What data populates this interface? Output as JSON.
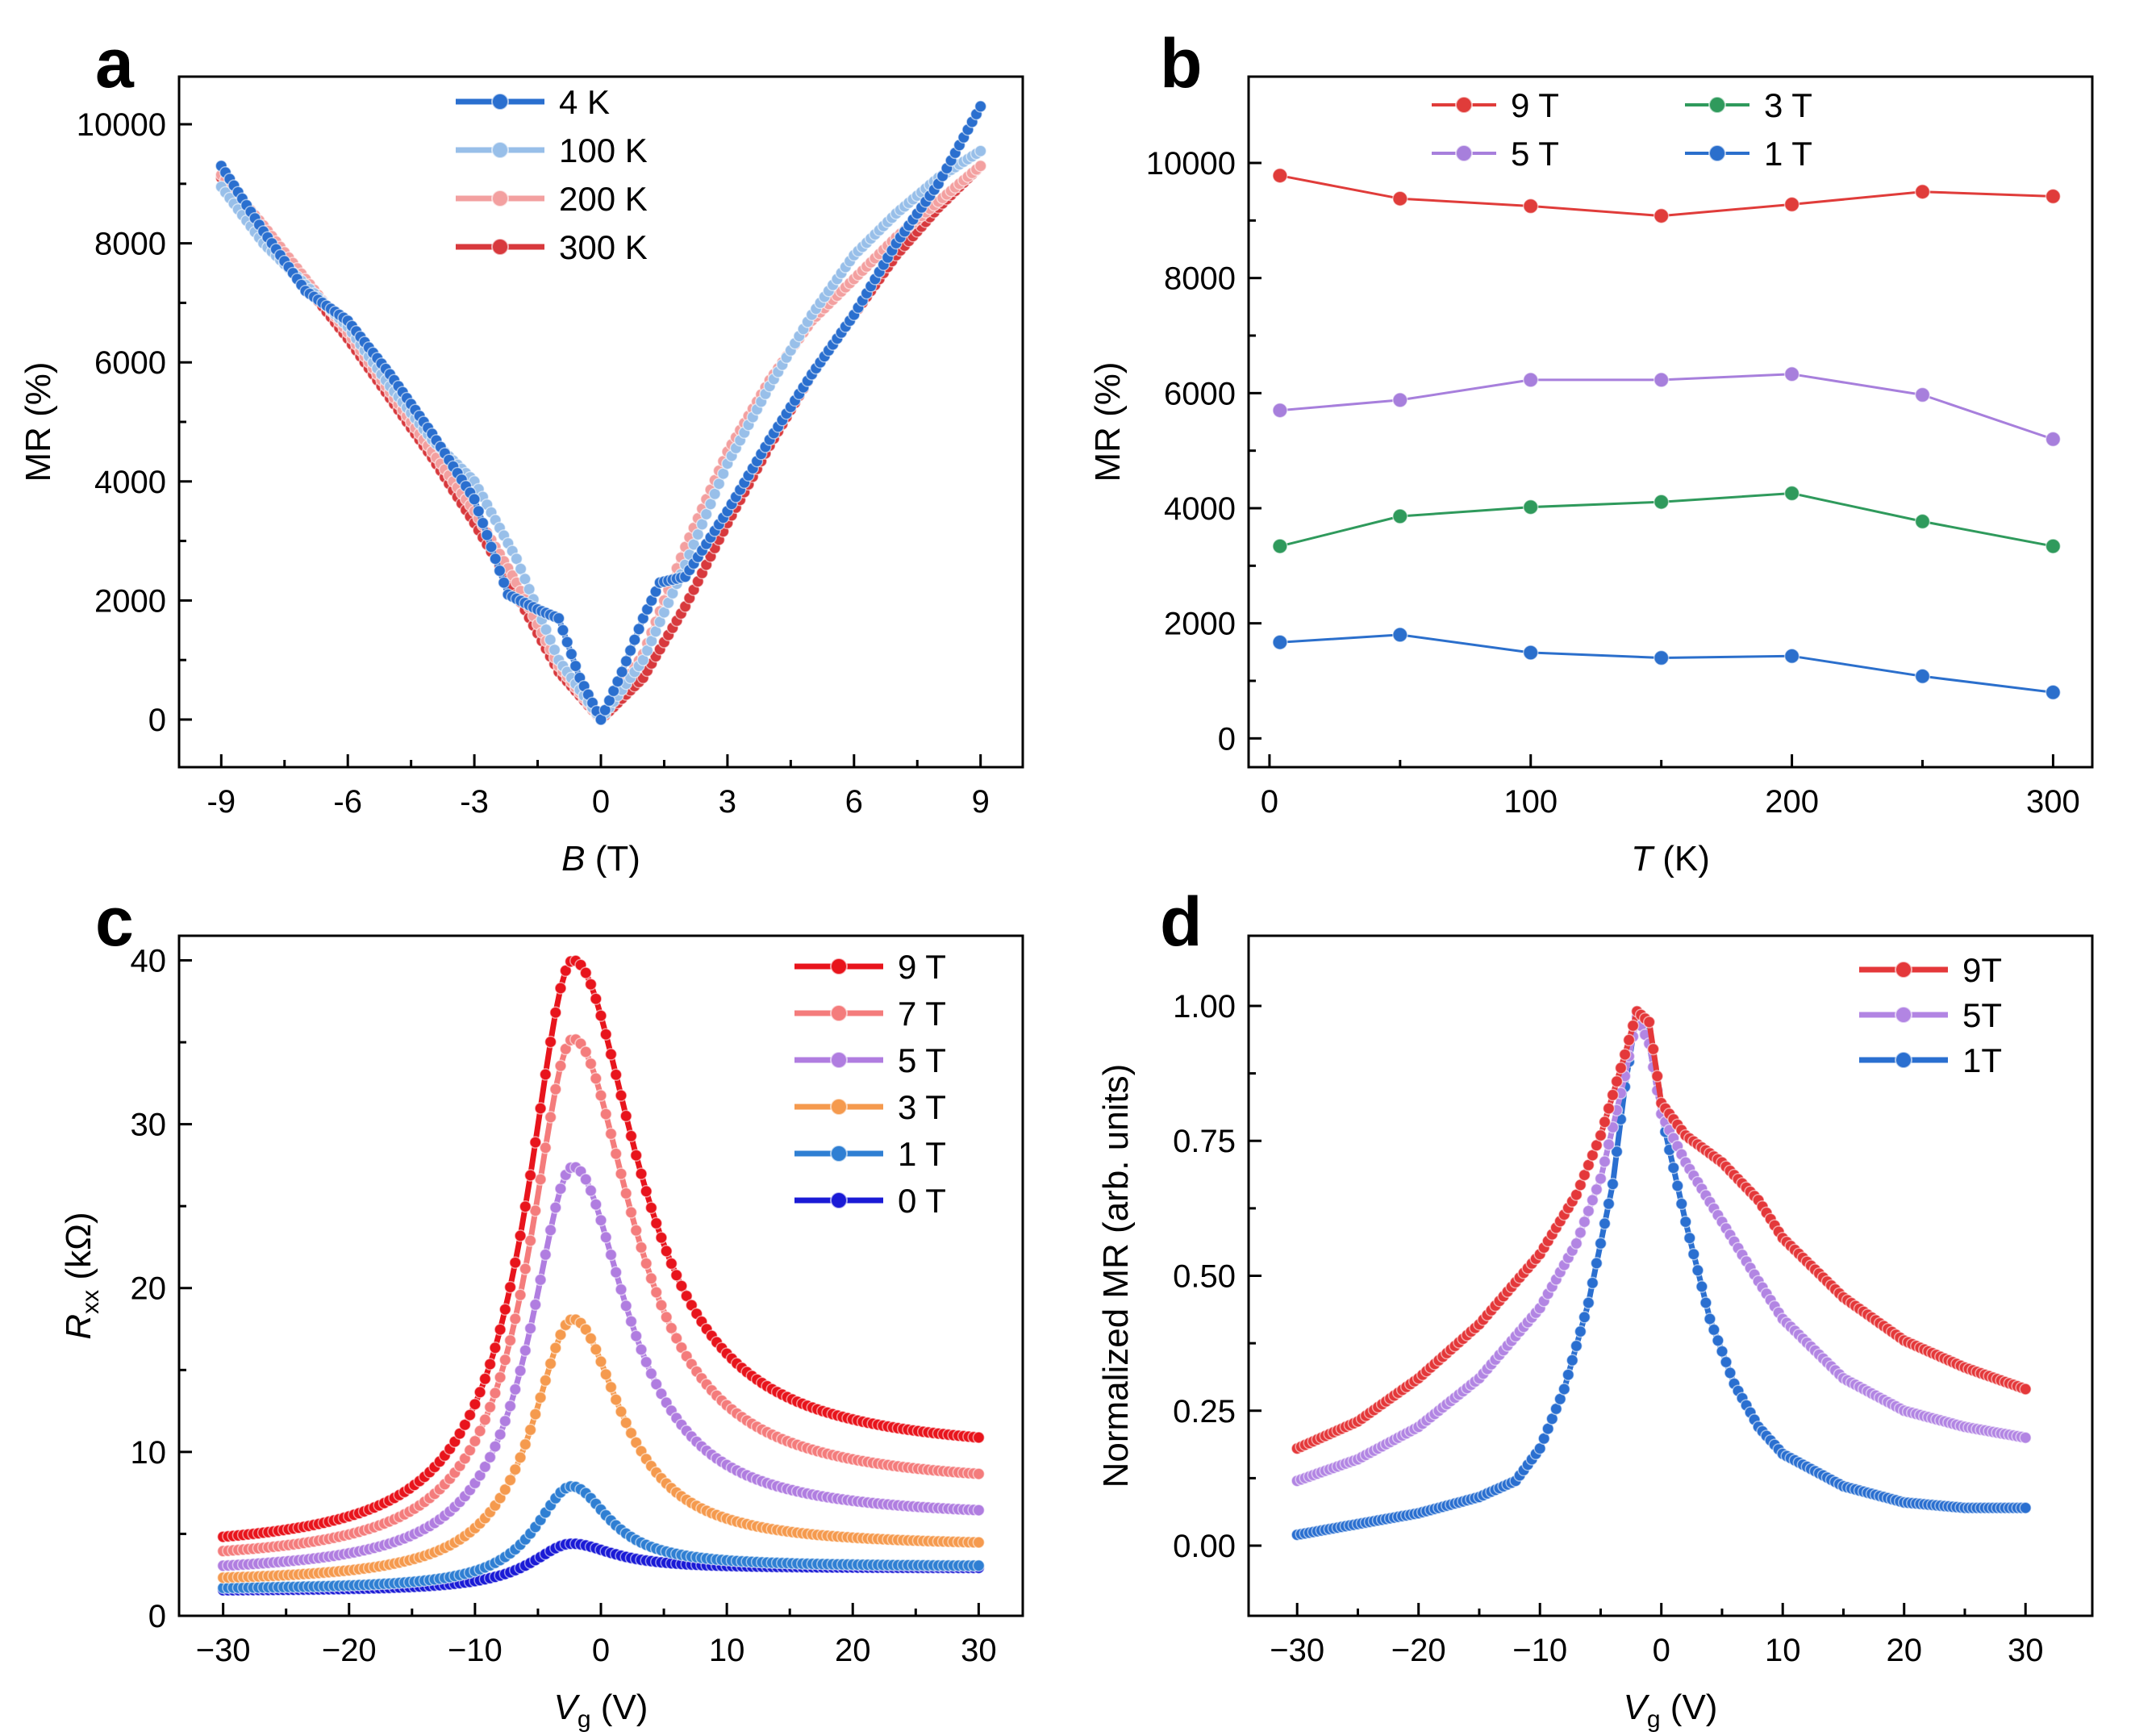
{
  "figure": {
    "panel_letters": [
      "a",
      "b",
      "c",
      "d"
    ]
  },
  "chart_data": [
    {
      "panel": "a",
      "type": "line",
      "xlabel": "B",
      "xlabel_unit": " (T)",
      "ylabel": "MR (%)",
      "xlim": [
        -10,
        10
      ],
      "ylim": [
        -800,
        10800
      ],
      "x_ticks": [
        -9,
        -6,
        -3,
        0,
        3,
        6,
        9
      ],
      "y_ticks": [
        0,
        2000,
        4000,
        6000,
        8000,
        10000
      ],
      "legend_position": "top-center",
      "series": [
        {
          "name": "4 K",
          "color": "#2a6fcf",
          "x": [
            -9,
            -8,
            -7,
            -6,
            -5,
            -4,
            -3,
            -2.2,
            -1.5,
            -1,
            -0.5,
            0,
            0.5,
            1,
            1.4,
            2,
            3,
            4,
            5,
            6,
            7,
            8,
            9
          ],
          "y": [
            9300,
            8200,
            7200,
            6700,
            5800,
            4800,
            3700,
            2100,
            1850,
            1700,
            700,
            0,
            800,
            1700,
            2300,
            2400,
            3500,
            4700,
            5800,
            6800,
            8000,
            9000,
            10300
          ]
        },
        {
          "name": "100 K",
          "color": "#98bfe9",
          "x": [
            -9,
            -8,
            -7,
            -6,
            -5,
            -4,
            -3,
            -2,
            -1,
            0,
            1,
            2,
            3,
            4,
            5,
            6,
            7,
            8,
            9
          ],
          "y": [
            8950,
            8000,
            7300,
            6600,
            5600,
            4700,
            4000,
            2700,
            1000,
            0,
            1000,
            2600,
            4300,
            5600,
            6800,
            7800,
            8500,
            9100,
            9550
          ]
        },
        {
          "name": "200 K",
          "color": "#f3a0a0",
          "x": [
            -9,
            -8,
            -7,
            -6,
            -5,
            -4,
            -3,
            -2,
            -1,
            0,
            1,
            2,
            3,
            4,
            5,
            6,
            7,
            8,
            9
          ],
          "y": [
            9150,
            8300,
            7400,
            6500,
            5500,
            4500,
            3500,
            2300,
            900,
            0,
            1100,
            2900,
            4500,
            5700,
            6700,
            7400,
            8100,
            8700,
            9300
          ]
        },
        {
          "name": "300 K",
          "color": "#d8393d",
          "x": [
            -9,
            -8,
            -7,
            -6,
            -5,
            -4,
            -3,
            -2,
            -1,
            0,
            1,
            2,
            3,
            4,
            5,
            6,
            7,
            8,
            9
          ],
          "y": [
            9100,
            8200,
            7300,
            6400,
            5400,
            4400,
            3300,
            2100,
            800,
            0,
            700,
            1900,
            3300,
            4600,
            5800,
            6800,
            7800,
            8600,
            9300
          ]
        }
      ]
    },
    {
      "panel": "b",
      "type": "line",
      "xlabel": "T",
      "xlabel_unit": " (K)",
      "ylabel": "MR (%)",
      "xlim": [
        -8,
        315
      ],
      "ylim": [
        -500,
        11500
      ],
      "x_ticks": [
        0,
        100,
        200,
        300
      ],
      "y_ticks": [
        0,
        2000,
        4000,
        6000,
        8000,
        10000
      ],
      "legend_position": "top",
      "series": [
        {
          "name": "9 T",
          "color": "#e03c3a",
          "x": [
            4,
            50,
            100,
            150,
            200,
            250,
            300
          ],
          "y": [
            9780,
            9380,
            9250,
            9080,
            9280,
            9500,
            9420
          ]
        },
        {
          "name": "5 T",
          "color": "#a77fdc",
          "x": [
            4,
            50,
            100,
            150,
            200,
            250,
            300
          ],
          "y": [
            5700,
            5880,
            6230,
            6230,
            6330,
            5970,
            5200
          ]
        },
        {
          "name": "3 T",
          "color": "#2f9a5c",
          "x": [
            4,
            50,
            100,
            150,
            200,
            250,
            300
          ],
          "y": [
            3340,
            3860,
            4020,
            4110,
            4260,
            3770,
            3340
          ]
        },
        {
          "name": "1 T",
          "color": "#2b6fcc",
          "x": [
            4,
            50,
            100,
            150,
            200,
            250,
            300
          ],
          "y": [
            1670,
            1800,
            1490,
            1400,
            1430,
            1080,
            800
          ]
        }
      ]
    },
    {
      "panel": "c",
      "type": "line",
      "xlabel": "V",
      "xlabel_sub": "g",
      "xlabel_unit": " (V)",
      "ylabel": "R",
      "ylabel_sub": "xx",
      "ylabel_unit": " (kΩ)",
      "xlim": [
        -33.5,
        33.5
      ],
      "ylim": [
        0,
        41.5
      ],
      "x_ticks": [
        -30,
        -20,
        -10,
        0,
        10,
        20,
        30
      ],
      "y_ticks": [
        0,
        10,
        20,
        30,
        40
      ],
      "legend_position": "top-right",
      "series": [
        {
          "name": "9 T",
          "color": "#e8141c",
          "peak": 40.0,
          "floor_left": 3.9,
          "floor_right": 9.8,
          "x0": -2.2,
          "gamma_left": 4.5,
          "gamma_right": 6.2
        },
        {
          "name": "7 T",
          "color": "#f47c7c",
          "peak": 35.2,
          "floor_left": 3.2,
          "floor_right": 7.8,
          "x0": -2.2,
          "gamma_left": 4.3,
          "gamma_right": 5.8
        },
        {
          "name": "5 T",
          "color": "#b07de0",
          "peak": 27.4,
          "floor_left": 2.5,
          "floor_right": 5.9,
          "x0": -2.2,
          "gamma_left": 4.2,
          "gamma_right": 5.2
        },
        {
          "name": "3 T",
          "color": "#f59a4e",
          "peak": 18.1,
          "floor_left": 2.0,
          "floor_right": 4.2,
          "x0": -2.2,
          "gamma_left": 4.0,
          "gamma_right": 4.6
        },
        {
          "name": "1 T",
          "color": "#2f7fd3",
          "peak": 7.9,
          "floor_left": 1.6,
          "floor_right": 3.0,
          "x0": -2.3,
          "gamma_left": 3.6,
          "gamma_right": 3.6
        },
        {
          "name": "0 T",
          "color": "#1a1ad6",
          "peak": 4.4,
          "floor_left": 1.5,
          "floor_right": 2.9,
          "x0": -2.3,
          "gamma_left": 4.0,
          "gamma_right": 4.0
        }
      ]
    },
    {
      "panel": "d",
      "type": "line",
      "xlabel": "V",
      "xlabel_sub": "g",
      "xlabel_unit": " (V)",
      "ylabel": "Normalized MR (arb. units)",
      "xlim": [
        -34,
        35.5
      ],
      "ylim": [
        -0.13,
        1.13
      ],
      "x_ticks": [
        -30,
        -20,
        -10,
        0,
        10,
        20,
        30
      ],
      "y_ticks": [
        0.0,
        0.25,
        0.5,
        0.75,
        1.0
      ],
      "y_tick_labels": [
        "0.00",
        "0.25",
        "0.50",
        "0.75",
        "1.00"
      ],
      "legend_position": "top-right",
      "series": [
        {
          "name": "9T",
          "color": "#e4383a",
          "x": [
            -30,
            -25,
            -20,
            -15,
            -10,
            -7,
            -5,
            -3,
            -2,
            -1,
            0,
            2,
            5,
            8,
            10,
            15,
            20,
            25,
            30
          ],
          "y": [
            0.18,
            0.23,
            0.31,
            0.41,
            0.54,
            0.65,
            0.76,
            0.91,
            0.99,
            0.97,
            0.82,
            0.76,
            0.71,
            0.64,
            0.57,
            0.46,
            0.38,
            0.33,
            0.29
          ]
        },
        {
          "name": "5T",
          "color": "#b285e3",
          "x": [
            -30,
            -25,
            -20,
            -15,
            -10,
            -7,
            -5,
            -3,
            -2,
            -1,
            0,
            2,
            5,
            8,
            10,
            15,
            20,
            25,
            30
          ],
          "y": [
            0.12,
            0.16,
            0.22,
            0.31,
            0.44,
            0.56,
            0.68,
            0.87,
            0.98,
            0.93,
            0.8,
            0.71,
            0.6,
            0.49,
            0.42,
            0.31,
            0.25,
            0.22,
            0.2
          ]
        },
        {
          "name": "1T",
          "color": "#2a6fd0",
          "x": [
            -30,
            -25,
            -20,
            -15,
            -12,
            -10,
            -8,
            -6,
            -4,
            -3,
            -2,
            -1,
            0,
            2,
            4,
            6,
            8,
            10,
            15,
            20,
            25,
            30
          ],
          "y": [
            0.02,
            0.04,
            0.06,
            0.09,
            0.12,
            0.18,
            0.29,
            0.45,
            0.67,
            0.85,
            0.99,
            0.93,
            0.8,
            0.6,
            0.42,
            0.3,
            0.22,
            0.17,
            0.11,
            0.08,
            0.07,
            0.07
          ]
        }
      ]
    }
  ]
}
